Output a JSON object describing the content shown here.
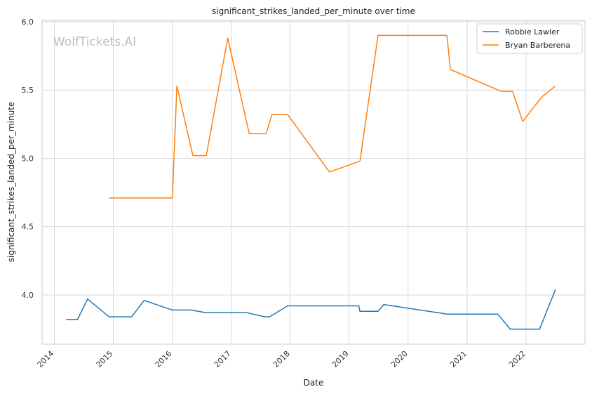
{
  "chart_data": {
    "type": "line",
    "title": "significant_strikes_landed_per_minute over time",
    "xlabel": "Date",
    "ylabel": "significant_strikes_landed_per_minute",
    "watermark": "WolfTickets.AI",
    "xlim": [
      "2013-10-17",
      "2023-01-01"
    ],
    "ylim": [
      3.64,
      6.01
    ],
    "x_ticks": [
      "2014",
      "2015",
      "2016",
      "2017",
      "2018",
      "2019",
      "2020",
      "2021",
      "2022"
    ],
    "y_ticks": [
      "4.0",
      "4.5",
      "5.0",
      "5.5",
      "6.0"
    ],
    "grid": true,
    "legend_position": "top-right",
    "series": [
      {
        "name": "Robbie Lawler",
        "color": "#1f77b4",
        "points": [
          [
            "2014-03-15",
            3.82
          ],
          [
            "2014-05-24",
            3.82
          ],
          [
            "2014-07-26",
            3.97
          ],
          [
            "2014-12-06",
            3.84
          ],
          [
            "2015-04-25",
            3.84
          ],
          [
            "2015-07-11",
            3.96
          ],
          [
            "2016-01-02",
            3.89
          ],
          [
            "2016-04-23",
            3.89
          ],
          [
            "2016-07-30",
            3.87
          ],
          [
            "2017-04-08",
            3.87
          ],
          [
            "2017-07-29",
            3.84
          ],
          [
            "2017-08-26",
            3.84
          ],
          [
            "2017-12-16",
            3.92
          ],
          [
            "2019-03-02",
            3.92
          ],
          [
            "2019-03-09",
            3.88
          ],
          [
            "2019-06-29",
            3.88
          ],
          [
            "2019-08-03",
            3.93
          ],
          [
            "2020-08-29",
            3.86
          ],
          [
            "2021-07-10",
            3.86
          ],
          [
            "2021-09-25",
            3.75
          ],
          [
            "2022-03-26",
            3.75
          ],
          [
            "2022-07-02",
            4.04
          ]
        ]
      },
      {
        "name": "Bryan Barberena",
        "color": "#ff7f0e",
        "points": [
          [
            "2014-12-06",
            4.71
          ],
          [
            "2016-01-02",
            4.71
          ],
          [
            "2016-01-30",
            5.53
          ],
          [
            "2016-05-08",
            5.02
          ],
          [
            "2016-07-30",
            5.02
          ],
          [
            "2016-12-10",
            5.88
          ],
          [
            "2017-04-22",
            5.18
          ],
          [
            "2017-08-05",
            5.18
          ],
          [
            "2017-09-09",
            5.32
          ],
          [
            "2017-12-16",
            5.32
          ],
          [
            "2018-09-01",
            4.9
          ],
          [
            "2019-03-09",
            4.98
          ],
          [
            "2019-06-29",
            5.9
          ],
          [
            "2020-08-29",
            5.9
          ],
          [
            "2020-09-19",
            5.65
          ],
          [
            "2021-07-31",
            5.49
          ],
          [
            "2021-10-09",
            5.49
          ],
          [
            "2021-12-11",
            5.27
          ],
          [
            "2022-04-09",
            5.45
          ],
          [
            "2022-07-02",
            5.53
          ]
        ]
      }
    ]
  }
}
